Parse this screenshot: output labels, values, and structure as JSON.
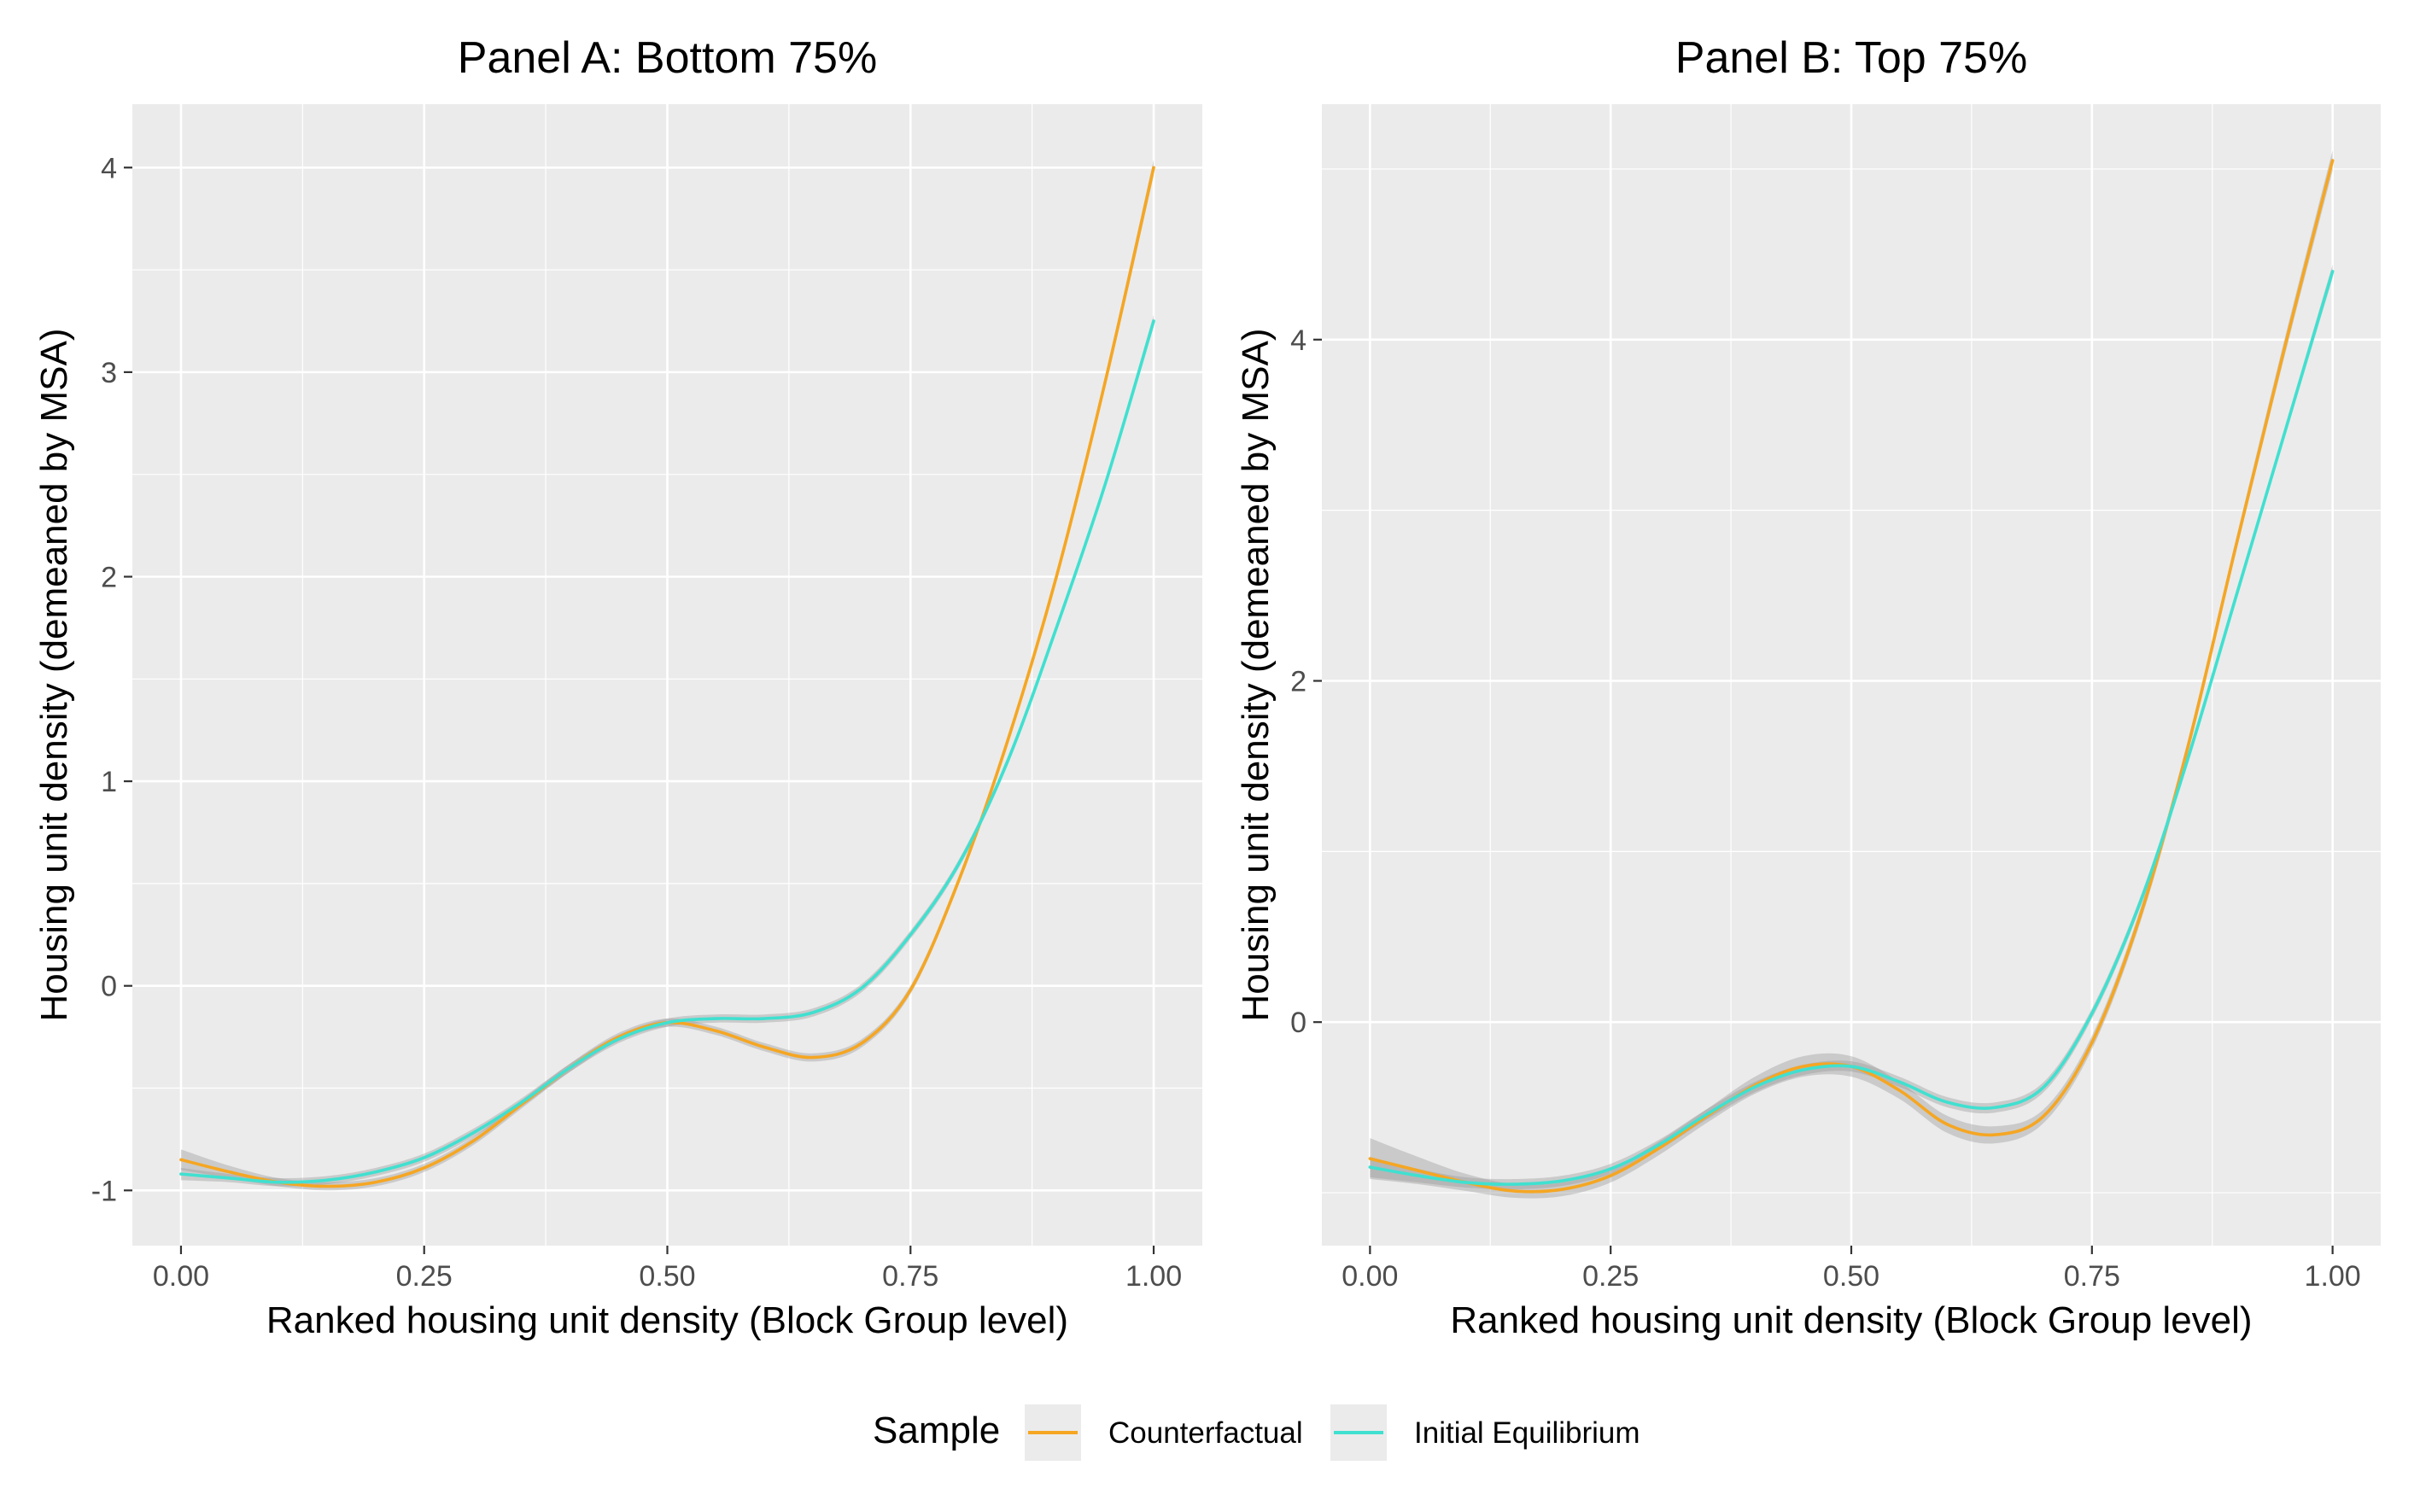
{
  "legend": {
    "title": "Sample",
    "items": [
      {
        "label": "Counterfactual",
        "color": "#F5A623"
      },
      {
        "label": "Initial Equilibrium",
        "color": "#40E0D0"
      }
    ]
  },
  "chart_data": [
    {
      "type": "line",
      "title": "Panel A: Bottom 75%",
      "xlabel": "Ranked housing unit density (Block Group level)",
      "ylabel": "Housing unit density (demeaned by MSA)",
      "xlim": [
        -0.05,
        1.05
      ],
      "ylim": [
        -1.27,
        4.31
      ],
      "x_ticks": [
        0,
        0.25,
        0.5,
        0.75,
        1.0
      ],
      "x_tick_labels": [
        "0.00",
        "0.25",
        "0.50",
        "0.75",
        "1.00"
      ],
      "y_ticks": [
        -1,
        0,
        1,
        2,
        3,
        4
      ],
      "y_tick_labels": [
        "-1",
        "0",
        "1",
        "2",
        "3",
        "4"
      ],
      "grid": true,
      "confidence_band": true,
      "series": [
        {
          "name": "Counterfactual",
          "color": "#F5A623",
          "x": [
            0,
            0.05,
            0.1,
            0.15,
            0.2,
            0.25,
            0.3,
            0.35,
            0.4,
            0.45,
            0.5,
            0.55,
            0.6,
            0.65,
            0.7,
            0.75,
            0.8,
            0.85,
            0.9,
            0.95,
            1.0
          ],
          "y": [
            -0.85,
            -0.91,
            -0.96,
            -0.98,
            -0.96,
            -0.89,
            -0.76,
            -0.58,
            -0.4,
            -0.25,
            -0.18,
            -0.22,
            -0.3,
            -0.35,
            -0.28,
            -0.02,
            0.52,
            1.2,
            2.0,
            2.95,
            4.0
          ],
          "band": [
            0.05,
            0.03,
            0.02,
            0.02,
            0.02,
            0.02,
            0.02,
            0.02,
            0.02,
            0.02,
            0.02,
            0.02,
            0.02,
            0.02,
            0.02,
            0.02,
            0.02,
            0.02,
            0.02,
            0.03,
            0.04
          ]
        },
        {
          "name": "Initial Equilibrium",
          "color": "#40E0D0",
          "x": [
            0,
            0.05,
            0.1,
            0.15,
            0.2,
            0.25,
            0.3,
            0.35,
            0.4,
            0.45,
            0.5,
            0.55,
            0.6,
            0.65,
            0.7,
            0.75,
            0.8,
            0.85,
            0.9,
            0.95,
            1.0
          ],
          "y": [
            -0.92,
            -0.94,
            -0.96,
            -0.95,
            -0.91,
            -0.84,
            -0.72,
            -0.57,
            -0.4,
            -0.26,
            -0.18,
            -0.16,
            -0.16,
            -0.13,
            -0.01,
            0.25,
            0.6,
            1.1,
            1.75,
            2.45,
            3.25
          ],
          "band": [
            0.03,
            0.02,
            0.02,
            0.02,
            0.02,
            0.02,
            0.02,
            0.02,
            0.02,
            0.02,
            0.02,
            0.02,
            0.02,
            0.02,
            0.02,
            0.02,
            0.02,
            0.02,
            0.02,
            0.02,
            0.03
          ]
        }
      ]
    },
    {
      "type": "line",
      "title": "Panel B: Top 75%",
      "xlabel": "Ranked housing unit density (Block Group level)",
      "ylabel": "Housing unit density (demeaned by MSA)",
      "xlim": [
        -0.05,
        1.05
      ],
      "ylim": [
        -1.31,
        5.38
      ],
      "x_ticks": [
        0,
        0.25,
        0.5,
        0.75,
        1.0
      ],
      "x_tick_labels": [
        "0.00",
        "0.25",
        "0.50",
        "0.75",
        "1.00"
      ],
      "y_ticks": [
        0,
        2,
        4
      ],
      "y_tick_labels": [
        "0",
        "2",
        "4"
      ],
      "grid": true,
      "confidence_band": true,
      "series": [
        {
          "name": "Counterfactual",
          "color": "#F5A623",
          "x": [
            0,
            0.05,
            0.1,
            0.15,
            0.2,
            0.25,
            0.3,
            0.35,
            0.4,
            0.45,
            0.5,
            0.55,
            0.6,
            0.65,
            0.7,
            0.75,
            0.8,
            0.85,
            0.9,
            0.95,
            1.0
          ],
          "y": [
            -0.8,
            -0.87,
            -0.94,
            -0.99,
            -0.98,
            -0.9,
            -0.74,
            -0.55,
            -0.37,
            -0.26,
            -0.26,
            -0.4,
            -0.6,
            -0.66,
            -0.55,
            -0.12,
            0.62,
            1.62,
            2.8,
            3.95,
            5.05
          ],
          "band": [
            0.12,
            0.08,
            0.05,
            0.04,
            0.04,
            0.04,
            0.04,
            0.04,
            0.05,
            0.06,
            0.06,
            0.05,
            0.05,
            0.05,
            0.04,
            0.04,
            0.04,
            0.04,
            0.04,
            0.05,
            0.06
          ]
        },
        {
          "name": "Initial Equilibrium",
          "color": "#40E0D0",
          "x": [
            0,
            0.05,
            0.1,
            0.15,
            0.2,
            0.25,
            0.3,
            0.35,
            0.4,
            0.45,
            0.5,
            0.55,
            0.6,
            0.65,
            0.7,
            0.75,
            0.8,
            0.85,
            0.9,
            0.95,
            1.0
          ],
          "y": [
            -0.85,
            -0.9,
            -0.94,
            -0.95,
            -0.93,
            -0.86,
            -0.72,
            -0.54,
            -0.38,
            -0.28,
            -0.26,
            -0.35,
            -0.47,
            -0.5,
            -0.38,
            0.05,
            0.7,
            1.55,
            2.5,
            3.45,
            4.4
          ],
          "band": [
            0.06,
            0.04,
            0.03,
            0.03,
            0.03,
            0.03,
            0.03,
            0.03,
            0.03,
            0.03,
            0.03,
            0.03,
            0.03,
            0.03,
            0.03,
            0.03,
            0.03,
            0.03,
            0.03,
            0.03,
            0.04
          ]
        }
      ]
    }
  ]
}
